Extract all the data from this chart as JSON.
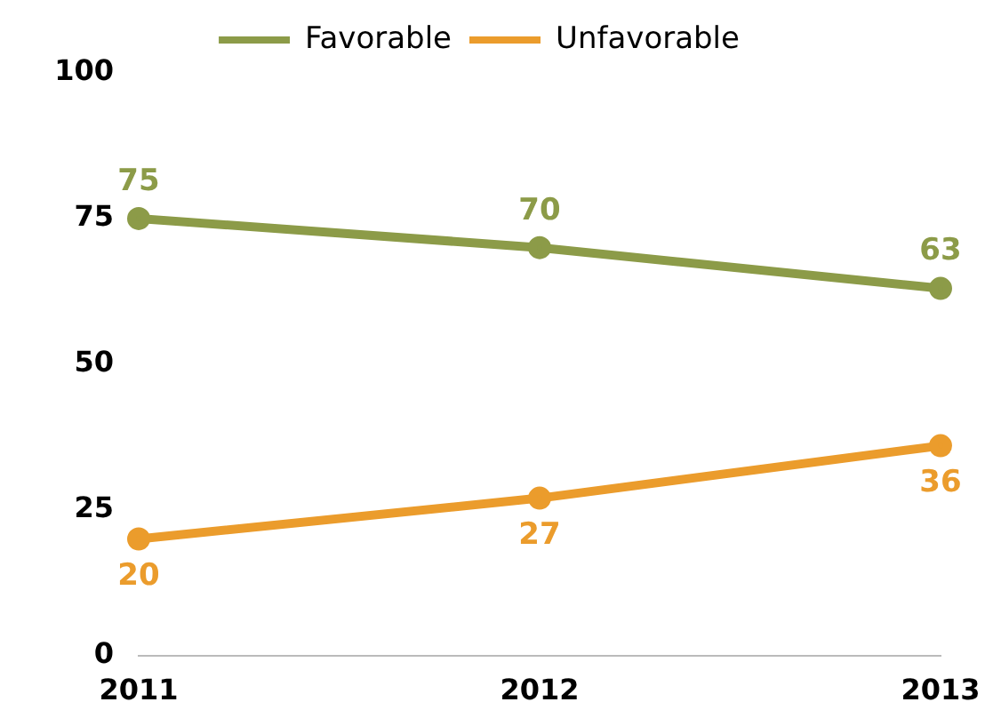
{
  "chart_data": {
    "type": "line",
    "categories": [
      "2011",
      "2012",
      "2013"
    ],
    "series": [
      {
        "name": "Favorable",
        "color": "#8c9b48",
        "values": [
          75,
          70,
          63
        ]
      },
      {
        "name": "Unfavorable",
        "color": "#eb9c2c",
        "values": [
          20,
          27,
          36
        ]
      }
    ],
    "ylim": [
      0,
      100
    ],
    "yticks": [
      0,
      25,
      50,
      75,
      100
    ],
    "grid": false,
    "legend": "top",
    "marker": "circle",
    "line_style": "solid",
    "data_labels": true
  }
}
